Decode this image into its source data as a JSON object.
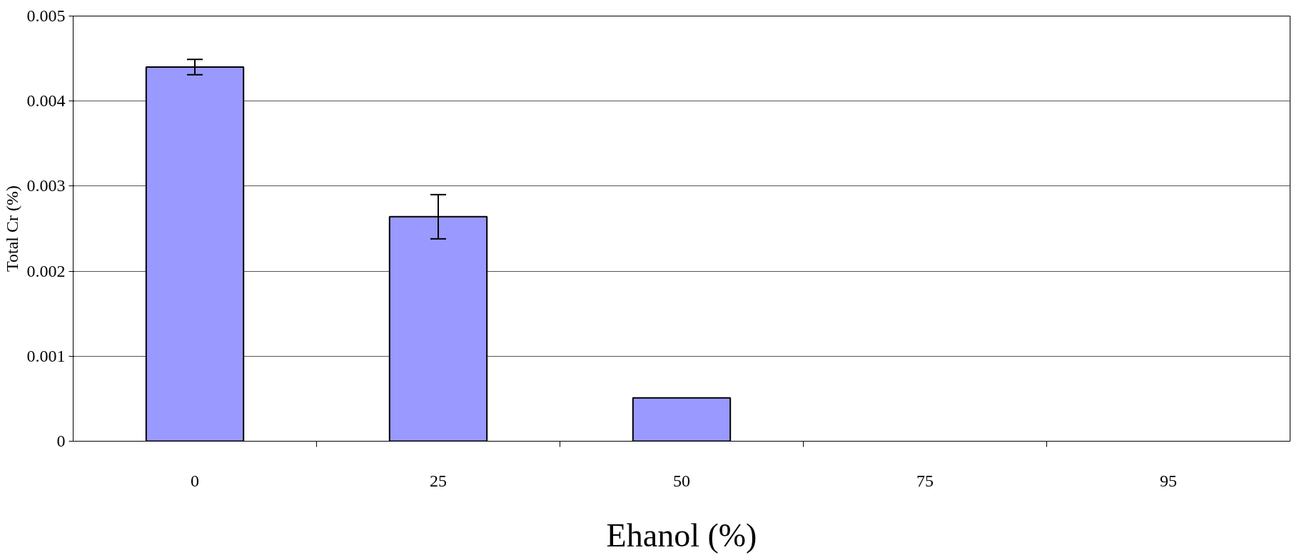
{
  "chart_data": {
    "type": "bar",
    "xlabel": "Ehanol (%)",
    "ylabel": "Total Cr (%)",
    "categories": [
      "0",
      "25",
      "50",
      "75",
      "95"
    ],
    "series": [
      {
        "color": "#9999ff",
        "values": [
          0.0044,
          0.00264,
          0.00051,
          null,
          null
        ],
        "errors": [
          9e-05,
          0.00026,
          null,
          null,
          null
        ]
      }
    ],
    "ylim": [
      0,
      0.005
    ],
    "yticks": [
      {
        "value": 0,
        "label": "0"
      },
      0.001,
      0.002,
      0.003,
      0.004,
      0.005
    ],
    "grid": "y"
  }
}
